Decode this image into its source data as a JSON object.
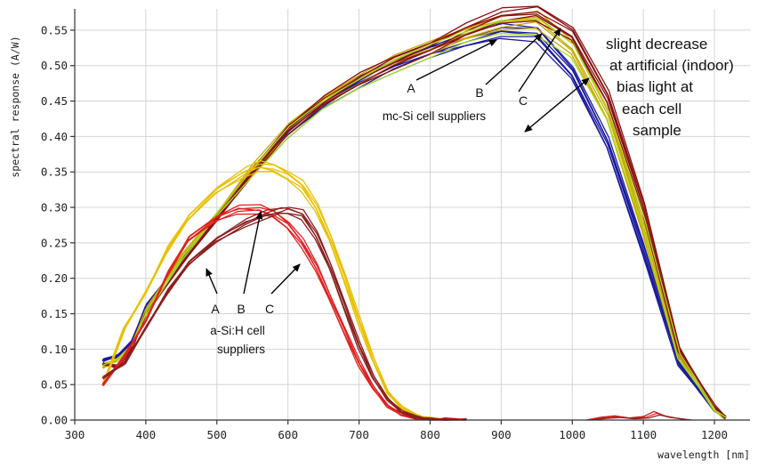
{
  "chart_data": {
    "type": "line",
    "title": "",
    "xlabel": "wavelength [nm]",
    "ylabel": "spectral response (A/W)",
    "xlim": [
      300,
      1250
    ],
    "ylim": [
      0,
      0.58
    ],
    "xticks": [
      300,
      400,
      500,
      600,
      700,
      800,
      900,
      1000,
      1100,
      1200
    ],
    "xtick_labels": [
      "300",
      "400",
      "500",
      "600",
      "700",
      "800",
      "900",
      "1000",
      "1100",
      "1200"
    ],
    "yticks": [
      0,
      0.05,
      0.1,
      0.15,
      0.2,
      0.25,
      0.3,
      0.35,
      0.4,
      0.45,
      0.5,
      0.55
    ],
    "ytick_labels": [
      "0.00",
      "0.05",
      "0.10",
      "0.15",
      "0.20",
      "0.25",
      "0.30",
      "0.35",
      "0.40",
      "0.45",
      "0.50",
      "0.55"
    ],
    "grid": true,
    "legend": "none",
    "series": [
      {
        "group": "mc-Si",
        "supplier": "A",
        "color": "#1a1aa0",
        "copies": 6,
        "x": [
          340,
          360,
          380,
          400,
          450,
          500,
          550,
          600,
          650,
          700,
          750,
          800,
          850,
          900,
          950,
          1000,
          1050,
          1100,
          1150,
          1180,
          1200,
          1215
        ],
        "y": [
          0.085,
          0.09,
          0.11,
          0.16,
          0.225,
          0.285,
          0.35,
          0.405,
          0.445,
          0.475,
          0.5,
          0.52,
          0.535,
          0.548,
          0.545,
          0.49,
          0.39,
          0.24,
          0.08,
          0.04,
          0.015,
          0.003
        ]
      },
      {
        "group": "mc-Si",
        "supplier": "B",
        "color": "#c8a800",
        "copies": 5,
        "x": [
          340,
          360,
          380,
          400,
          450,
          500,
          550,
          600,
          650,
          700,
          750,
          800,
          850,
          900,
          950,
          1000,
          1050,
          1100,
          1150,
          1180,
          1200,
          1215
        ],
        "y": [
          0.075,
          0.085,
          0.105,
          0.155,
          0.23,
          0.29,
          0.355,
          0.41,
          0.45,
          0.48,
          0.505,
          0.525,
          0.545,
          0.56,
          0.565,
          0.525,
          0.43,
          0.27,
          0.09,
          0.045,
          0.015,
          0.003
        ]
      },
      {
        "group": "mc-Si",
        "supplier": "C",
        "color": "#8b1010",
        "copies": 6,
        "x": [
          340,
          360,
          380,
          400,
          450,
          500,
          550,
          600,
          650,
          700,
          750,
          800,
          850,
          900,
          950,
          1000,
          1050,
          1100,
          1150,
          1180,
          1200,
          1215
        ],
        "y": [
          0.08,
          0.075,
          0.1,
          0.15,
          0.22,
          0.285,
          0.35,
          0.41,
          0.45,
          0.48,
          0.505,
          0.525,
          0.55,
          0.57,
          0.575,
          0.545,
          0.455,
          0.3,
          0.1,
          0.05,
          0.018,
          0.004
        ]
      },
      {
        "group": "mc-Si",
        "supplier": "",
        "color": "#a8e020",
        "copies": 2,
        "x": [
          340,
          360,
          380,
          400,
          450,
          500,
          550,
          600,
          650,
          700,
          750,
          800,
          850,
          900,
          950,
          1000,
          1050,
          1100,
          1150,
          1180,
          1200,
          1215
        ],
        "y": [
          0.078,
          0.085,
          0.105,
          0.15,
          0.225,
          0.29,
          0.35,
          0.405,
          0.445,
          0.475,
          0.5,
          0.52,
          0.54,
          0.555,
          0.555,
          0.52,
          0.43,
          0.28,
          0.09,
          0.045,
          0.015,
          0.003
        ]
      },
      {
        "group": "a-Si:H",
        "supplier": "A",
        "color": "#e8c000",
        "copies": 5,
        "x": [
          340,
          370,
          400,
          430,
          460,
          500,
          540,
          560,
          580,
          600,
          620,
          640,
          660,
          680,
          700,
          720,
          740,
          760,
          780,
          800,
          820,
          850
        ],
        "y": [
          0.05,
          0.13,
          0.18,
          0.24,
          0.285,
          0.325,
          0.35,
          0.358,
          0.355,
          0.345,
          0.33,
          0.3,
          0.255,
          0.2,
          0.14,
          0.085,
          0.04,
          0.018,
          0.006,
          0.002,
          0.001,
          0.0
        ]
      },
      {
        "group": "a-Si:H",
        "supplier": "B",
        "color": "#e02020",
        "copies": 5,
        "x": [
          340,
          370,
          400,
          430,
          460,
          500,
          530,
          560,
          580,
          600,
          620,
          640,
          660,
          680,
          700,
          720,
          740,
          760,
          780,
          800,
          820,
          850
        ],
        "y": [
          0.05,
          0.09,
          0.14,
          0.205,
          0.255,
          0.285,
          0.297,
          0.297,
          0.29,
          0.275,
          0.25,
          0.215,
          0.17,
          0.125,
          0.08,
          0.045,
          0.02,
          0.008,
          0.003,
          0.001,
          0.0,
          0.0
        ]
      },
      {
        "group": "a-Si:H",
        "supplier": "C",
        "color": "#8b2020",
        "copies": 5,
        "x": [
          340,
          370,
          400,
          430,
          460,
          500,
          540,
          570,
          590,
          600,
          620,
          640,
          660,
          680,
          700,
          720,
          740,
          760,
          780,
          800,
          820,
          850
        ],
        "y": [
          0.06,
          0.08,
          0.13,
          0.18,
          0.22,
          0.255,
          0.278,
          0.29,
          0.295,
          0.296,
          0.29,
          0.26,
          0.215,
          0.16,
          0.105,
          0.06,
          0.03,
          0.012,
          0.004,
          0.001,
          0.0,
          0.0
        ]
      }
    ],
    "annotations": [
      {
        "id": "mc-a",
        "text": "A"
      },
      {
        "id": "mc-b",
        "text": "B"
      },
      {
        "id": "mc-c",
        "text": "C"
      },
      {
        "id": "mc-group",
        "text": "mc-Si cell suppliers"
      },
      {
        "id": "asi-a",
        "text": "A"
      },
      {
        "id": "asi-b",
        "text": "B"
      },
      {
        "id": "asi-c",
        "text": "C"
      },
      {
        "id": "asi-group-1",
        "text": "a-Si:H cell"
      },
      {
        "id": "asi-group-2",
        "text": "suppliers"
      },
      {
        "id": "note-1",
        "text": "slight decrease"
      },
      {
        "id": "note-2",
        "text": "at artificial (indoor)"
      },
      {
        "id": "note-3",
        "text": "bias light at"
      },
      {
        "id": "note-4",
        "text": "each cell"
      },
      {
        "id": "note-5",
        "text": "sample"
      }
    ]
  }
}
